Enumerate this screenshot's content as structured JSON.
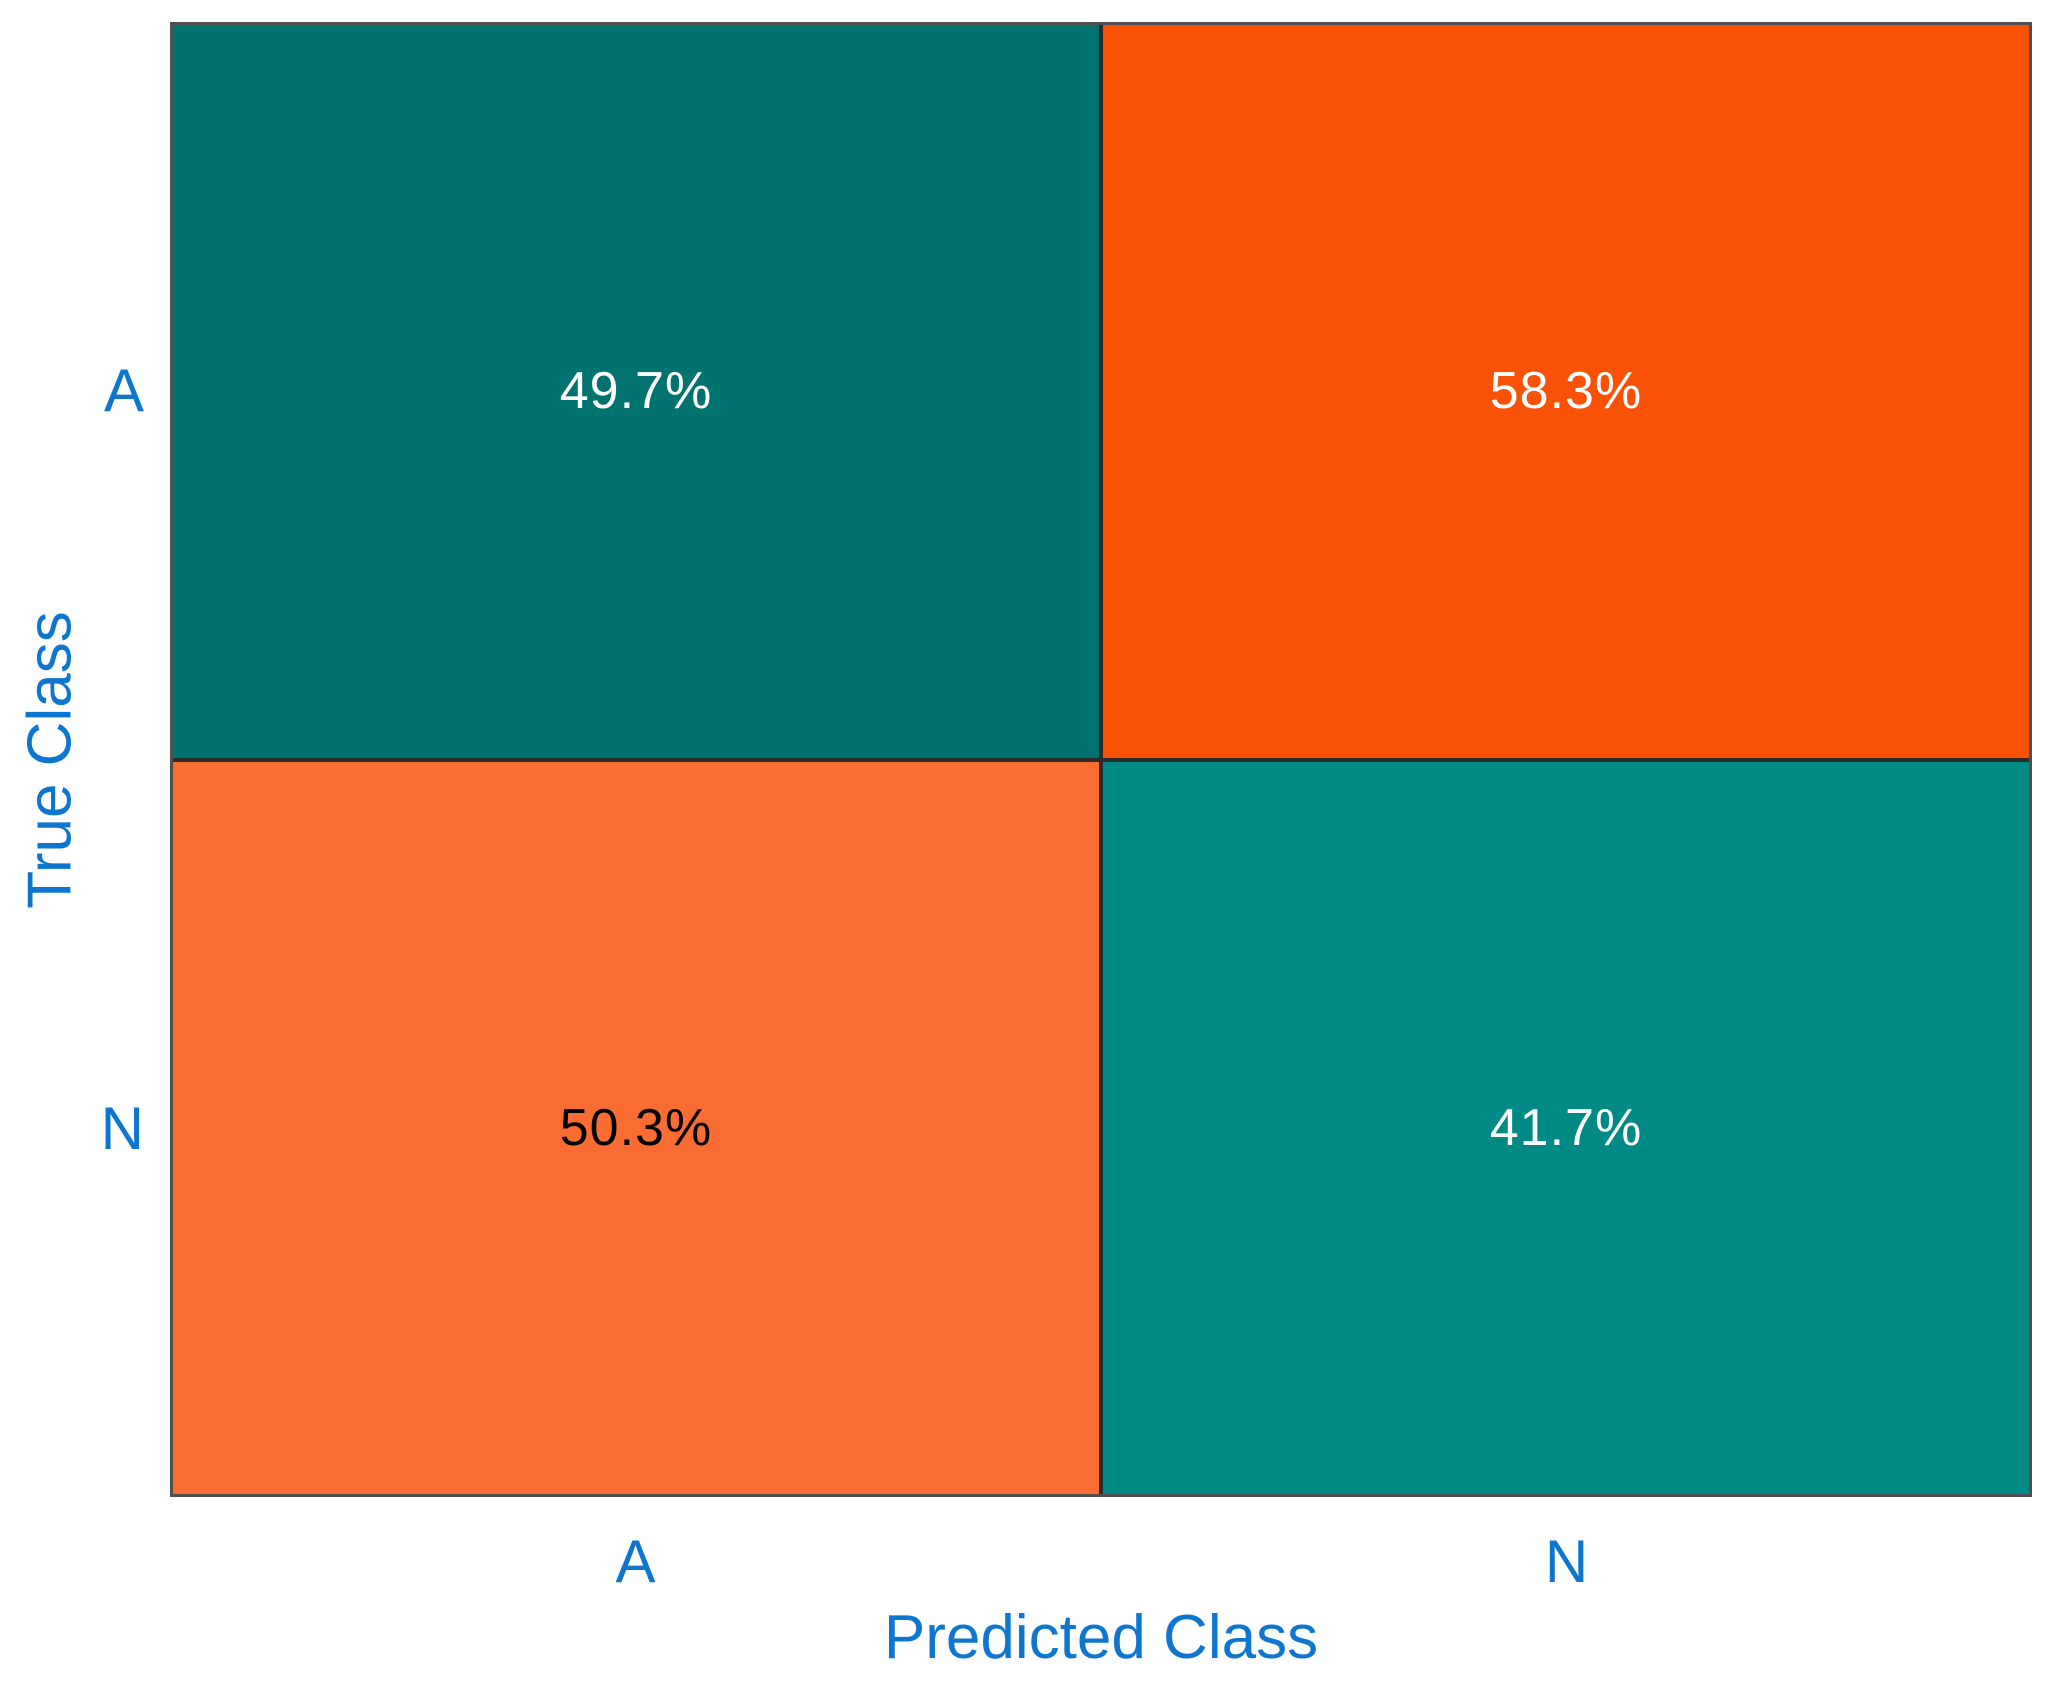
{
  "chart_data": {
    "type": "heatmap",
    "subtype": "confusion-matrix",
    "xlabel": "Predicted Class",
    "ylabel": "True Class",
    "x_categories": [
      "A",
      "N"
    ],
    "y_categories": [
      "A",
      "N"
    ],
    "values_percent": [
      [
        49.7,
        58.3
      ],
      [
        50.3,
        41.7
      ]
    ],
    "cells": [
      {
        "true_class": "A",
        "predicted_class": "A",
        "label": "49.7%",
        "value": 49.7,
        "bg": "#007370",
        "text_color": "#ffffff"
      },
      {
        "true_class": "A",
        "predicted_class": "N",
        "label": "58.3%",
        "value": 58.3,
        "bg": "#f95106",
        "text_color": "#ffffff"
      },
      {
        "true_class": "N",
        "predicted_class": "A",
        "label": "50.3%",
        "value": 50.3,
        "bg": "#f96c32",
        "text_color": "#000000"
      },
      {
        "true_class": "N",
        "predicted_class": "N",
        "label": "41.7%",
        "value": 41.7,
        "bg": "#008a85",
        "text_color": "#ffffff"
      }
    ],
    "colors": {
      "axis_text": "#0f76d0",
      "grid_line": "#2b2b2b",
      "plot_border": "#4f4f4f",
      "background": "#ffffff"
    },
    "legend": "none",
    "grid": "cell-borders"
  }
}
